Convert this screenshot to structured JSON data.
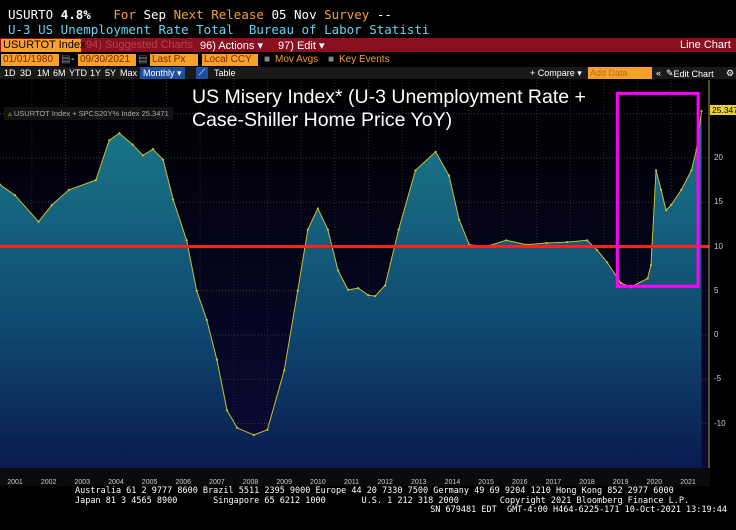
{
  "header": {
    "ticker": "USURTO",
    "value": "4.8%",
    "for_label": "For",
    "period": "Sep",
    "next_release_label": "Next Release",
    "next_release": "05 Nov",
    "survey_label": "Survey",
    "survey": "--",
    "description": "U-3 US Unemployment Rate Total  Bureau of Labor Statisti"
  },
  "toolbar": {
    "security": "USURTOT Index",
    "suggested": "94) Suggested Charts",
    "actions": "96) Actions ▾",
    "edit": "97) Edit ▾",
    "chart_type": "Line Chart"
  },
  "range": {
    "start": "01/01/1980",
    "end": "09/30/2021",
    "field": "Last Px",
    "currency": "Local CCY",
    "mov_avgs": "Mov Avgs",
    "key_events": "Key Events",
    "compare": "+ Compare ▾",
    "add_data_placeholder": "Add Data",
    "edit_chart": "Edit Chart"
  },
  "periods": [
    "1D",
    "3D",
    "1M",
    "6M",
    "YTD",
    "1Y",
    "5Y",
    "Max"
  ],
  "frequency": "Monthly ▾",
  "table_label": "Table",
  "footer": {
    "line1": "Australia 61 2 9777 8600 Brazil 5511 2395 9000 Europe 44 20 7330 7500 Germany 49 69 9204 1210 Hong Kong 852 2977 6000",
    "line2": "Japan 81 3 4565 8900       Singapore 65 6212 1000       U.S. 1 212 318 2000        Copyright 2021 Bloomberg Finance L.P.",
    "line3": "SN 679481 EDT  GMT-4:00 H464-6225-171 10-Oct-2021 13:19:44"
  },
  "chart_data": {
    "type": "area",
    "title": "US Misery Index* (U-3 Unemployment Rate + Case-Shiller Home Price YoY)",
    "legend": "USURTOT Index + SPCS20Y% Index 25.3471",
    "last_value": "25.3471",
    "reference_line": 10,
    "highlight_range": [
      2019.4,
      2021.8
    ],
    "ylim": [
      -15,
      28
    ],
    "yticks": [
      -10,
      -5,
      0,
      5,
      10,
      15,
      20
    ],
    "xticks": [
      "2001",
      "2002",
      "2003",
      "2004",
      "2005",
      "2006",
      "2007",
      "2008",
      "2009",
      "2010",
      "2011",
      "2012",
      "2013",
      "2014",
      "2015",
      "2016",
      "2017",
      "2018",
      "2019",
      "2020",
      "2021"
    ],
    "colors": {
      "line": "#c8c030",
      "ref": "#ff2020",
      "highlight": "#ff00ff",
      "fill_top": "#1a7a8a",
      "fill_bottom": "#0a1a50"
    },
    "series": [
      {
        "name": "USURTOT Index + SPCS20Y% Index",
        "points": [
          [
            2001.05,
            17
          ],
          [
            2001.5,
            15.8
          ],
          [
            2002.2,
            12.8
          ],
          [
            2002.6,
            14.7
          ],
          [
            2003.1,
            16.4
          ],
          [
            2003.9,
            17.5
          ],
          [
            2004.3,
            22
          ],
          [
            2004.6,
            22.8
          ],
          [
            2005.0,
            21.5
          ],
          [
            2005.3,
            20.3
          ],
          [
            2005.6,
            21
          ],
          [
            2005.9,
            19.8
          ],
          [
            2006.2,
            15.3
          ],
          [
            2006.6,
            10.7
          ],
          [
            2006.9,
            5
          ],
          [
            2007.2,
            1.7
          ],
          [
            2007.5,
            -2.8
          ],
          [
            2007.8,
            -8.5
          ],
          [
            2008.1,
            -10.5
          ],
          [
            2008.6,
            -11.3
          ],
          [
            2009.0,
            -10.7
          ],
          [
            2009.5,
            -4
          ],
          [
            2009.9,
            5
          ],
          [
            2010.2,
            11.9
          ],
          [
            2010.5,
            14.3
          ],
          [
            2010.8,
            11.9
          ],
          [
            2011.1,
            7.3
          ],
          [
            2011.4,
            5.1
          ],
          [
            2011.7,
            5.3
          ],
          [
            2012.0,
            4.5
          ],
          [
            2012.2,
            4.4
          ],
          [
            2012.5,
            5.6
          ],
          [
            2012.9,
            11.9
          ],
          [
            2013.4,
            18.6
          ],
          [
            2014.0,
            20.7
          ],
          [
            2014.4,
            18
          ],
          [
            2014.7,
            13
          ],
          [
            2015.0,
            10.2
          ],
          [
            2015.5,
            10
          ],
          [
            2016.1,
            10.7
          ],
          [
            2016.7,
            10.2
          ],
          [
            2017.3,
            10.4
          ],
          [
            2017.9,
            10.5
          ],
          [
            2018.5,
            10.7
          ],
          [
            2018.8,
            9.6
          ],
          [
            2019.1,
            8.2
          ],
          [
            2019.5,
            5.9
          ],
          [
            2019.8,
            5.4
          ],
          [
            2020.3,
            6.4
          ],
          [
            2020.4,
            7.9
          ],
          [
            2020.55,
            18.6
          ],
          [
            2020.7,
            16.4
          ],
          [
            2020.85,
            14.1
          ],
          [
            2021.0,
            14.7
          ],
          [
            2021.3,
            16.4
          ],
          [
            2021.6,
            18.6
          ],
          [
            2021.75,
            20.9
          ],
          [
            2021.9,
            25.3
          ]
        ]
      }
    ]
  }
}
